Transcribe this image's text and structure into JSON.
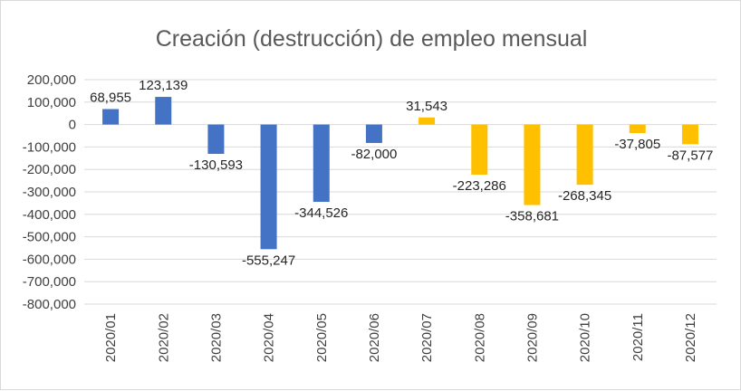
{
  "chart_data": {
    "type": "bar",
    "title": "Creación (destrucción) de empleo mensual",
    "xlabel": "",
    "ylabel": "",
    "categories": [
      "2020/01",
      "2020/02",
      "2020/03",
      "2020/04",
      "2020/05",
      "2020/06",
      "2020/07",
      "2020/08",
      "2020/09",
      "2020/10",
      "2020/11",
      "2020/12"
    ],
    "values": [
      68955,
      123139,
      -130593,
      -555247,
      -344526,
      -82000,
      31543,
      -223286,
      -358681,
      -268345,
      -37805,
      -87577
    ],
    "data_labels": [
      "68,955",
      "123,139",
      "-130,593",
      "-555,247",
      "-344,526",
      "-82,000",
      "31,543",
      "-223,286",
      "-358,681",
      "-268,345",
      "-37,805",
      "-87,577"
    ],
    "ylim": [
      -800000,
      200000
    ],
    "y_ticks": [
      200000,
      100000,
      0,
      -100000,
      -200000,
      -300000,
      -400000,
      -500000,
      -600000,
      -700000,
      -800000
    ],
    "y_tick_labels": [
      "200,000",
      "100,000",
      "0",
      "-100,000",
      "-200,000",
      "-300,000",
      "-400,000",
      "-500,000",
      "-600,000",
      "-700,000",
      "-800,000"
    ],
    "grid": true,
    "legend": "none",
    "colors": [
      "#4472c4",
      "#4472c4",
      "#4472c4",
      "#4472c4",
      "#4472c4",
      "#4472c4",
      "#ffc000",
      "#ffc000",
      "#ffc000",
      "#ffc000",
      "#ffc000",
      "#ffc000"
    ]
  }
}
